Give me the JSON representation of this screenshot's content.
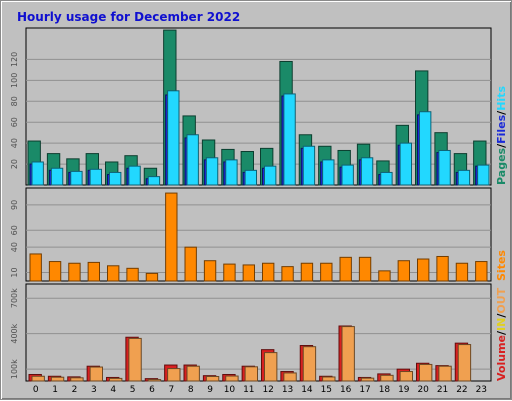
{
  "title": "Hourly usage for December 2022",
  "colors": {
    "pages": "#1a8a68",
    "files": "#1a2ad8",
    "hits": "#22d8ff",
    "sites": "#ff8800",
    "volume": "#d82020",
    "in": "#e0d020",
    "out": "#f0a050",
    "plot_bg": "#c0c0c0",
    "grid": "#909090"
  },
  "chart_data": [
    {
      "type": "bar",
      "name": "hits-panel",
      "categories": [
        "0",
        "1",
        "2",
        "3",
        "4",
        "5",
        "6",
        "7",
        "8",
        "9",
        "10",
        "11",
        "12",
        "13",
        "14",
        "15",
        "16",
        "17",
        "18",
        "19",
        "20",
        "21",
        "22",
        "23"
      ],
      "legend": [
        "Pages",
        "Files",
        "Hits"
      ],
      "legend_sep": "/",
      "ylim": [
        0,
        150
      ],
      "yticks": [
        20,
        40,
        60,
        80,
        100,
        120
      ],
      "series": [
        {
          "name": "Pages",
          "values": [
            42,
            30,
            25,
            30,
            22,
            28,
            16,
            148,
            66,
            43,
            34,
            32,
            35,
            118,
            48,
            37,
            33,
            39,
            23,
            57,
            109,
            50,
            30,
            42
          ]
        },
        {
          "name": "Files",
          "values": [
            20,
            14,
            12,
            14,
            10,
            16,
            6,
            86,
            45,
            24,
            22,
            12,
            16,
            85,
            35,
            22,
            17,
            24,
            10,
            38,
            67,
            31,
            12,
            18
          ]
        },
        {
          "name": "Hits",
          "values": [
            22,
            16,
            13,
            15,
            12,
            18,
            8,
            90,
            48,
            26,
            24,
            14,
            18,
            87,
            37,
            24,
            19,
            26,
            12,
            40,
            70,
            33,
            14,
            19
          ]
        }
      ]
    },
    {
      "type": "bar",
      "name": "sites-panel",
      "categories": [
        "0",
        "1",
        "2",
        "3",
        "4",
        "5",
        "6",
        "7",
        "8",
        "9",
        "10",
        "11",
        "12",
        "13",
        "14",
        "15",
        "16",
        "17",
        "18",
        "19",
        "20",
        "21",
        "22",
        "23"
      ],
      "legend": [
        "Sites"
      ],
      "ylim": [
        0,
        110
      ],
      "yticks": [
        10,
        40,
        60,
        90
      ],
      "series": [
        {
          "name": "Sites",
          "values": [
            32,
            23,
            21,
            22,
            18,
            15,
            9,
            104,
            40,
            24,
            20,
            19,
            21,
            17,
            21,
            21,
            28,
            28,
            12,
            24,
            26,
            29,
            21,
            23
          ]
        }
      ]
    },
    {
      "type": "bar",
      "name": "volume-panel",
      "categories": [
        "0",
        "1",
        "2",
        "3",
        "4",
        "5",
        "6",
        "7",
        "8",
        "9",
        "10",
        "11",
        "12",
        "13",
        "14",
        "15",
        "16",
        "17",
        "18",
        "19",
        "20",
        "21",
        "22",
        "23"
      ],
      "legend": [
        "Volume",
        "IN",
        "OUT"
      ],
      "legend_sep": "/",
      "ylim": [
        0,
        820
      ],
      "yticks": [
        100,
        400,
        700
      ],
      "ytick_labels": [
        "100k",
        "400k",
        "700k"
      ],
      "series": [
        {
          "name": "Volume",
          "values": [
            55,
            40,
            35,
            125,
            30,
            370,
            20,
            135,
            135,
            45,
            55,
            125,
            265,
            80,
            300,
            40,
            465,
            30,
            60,
            100,
            150,
            130,
            320,
            0
          ]
        },
        {
          "name": "OUT",
          "values": [
            40,
            32,
            27,
            118,
            22,
            360,
            12,
            105,
            125,
            38,
            42,
            120,
            240,
            68,
            290,
            34,
            460,
            24,
            48,
            80,
            140,
            125,
            308,
            0
          ]
        }
      ]
    }
  ]
}
